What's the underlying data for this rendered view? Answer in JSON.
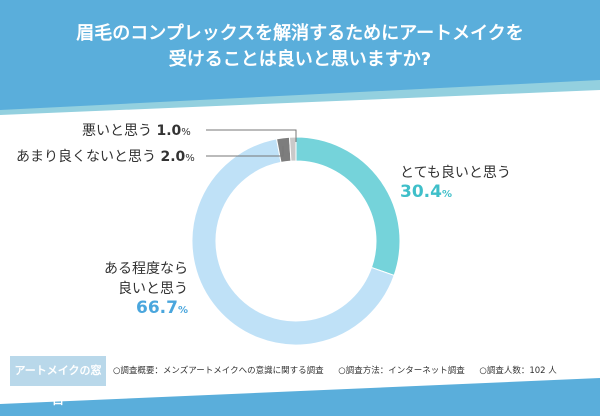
{
  "title_line1": "眉毛のコンプレックスを解消するためにアートメイクを",
  "title_line2": "受けることは良いと思いますか?",
  "colors": {
    "header": "#5aaedb",
    "header_strip": "#93d0df",
    "very_good": "#75d3da",
    "somewhat_good": "#bfe1f7",
    "not_good": "#7d7d7d",
    "bad": "#c9c9c9"
  },
  "chart_data": {
    "type": "pie",
    "donut": true,
    "slices": [
      {
        "label": "とても良いと思う",
        "value": 30.4
      },
      {
        "label": "ある程度なら良いと思う",
        "value": 66.7
      },
      {
        "label": "あまり良くないと思う",
        "value": 2.0
      },
      {
        "label": "悪いと思う",
        "value": 1.0
      }
    ]
  },
  "labels": {
    "bad": {
      "text": "悪いと思う",
      "value": "1.0",
      "unit": "%"
    },
    "not_good": {
      "text": "あまり良くないと思う",
      "value": "2.0",
      "unit": "%"
    },
    "very_good": {
      "text": "とても良いと思う",
      "value": "30.4",
      "unit": "%"
    },
    "somewhat_good": {
      "line1": "ある程度なら",
      "line2": "良いと思う",
      "value": "66.7",
      "unit": "%"
    }
  },
  "footer": {
    "brand": "アートメイクの窓口",
    "notes": [
      "○調査概要：メンズアートメイクへの意識に関する調査",
      "○調査方法：インターネット調査",
      "○調査人数：102 人"
    ]
  }
}
